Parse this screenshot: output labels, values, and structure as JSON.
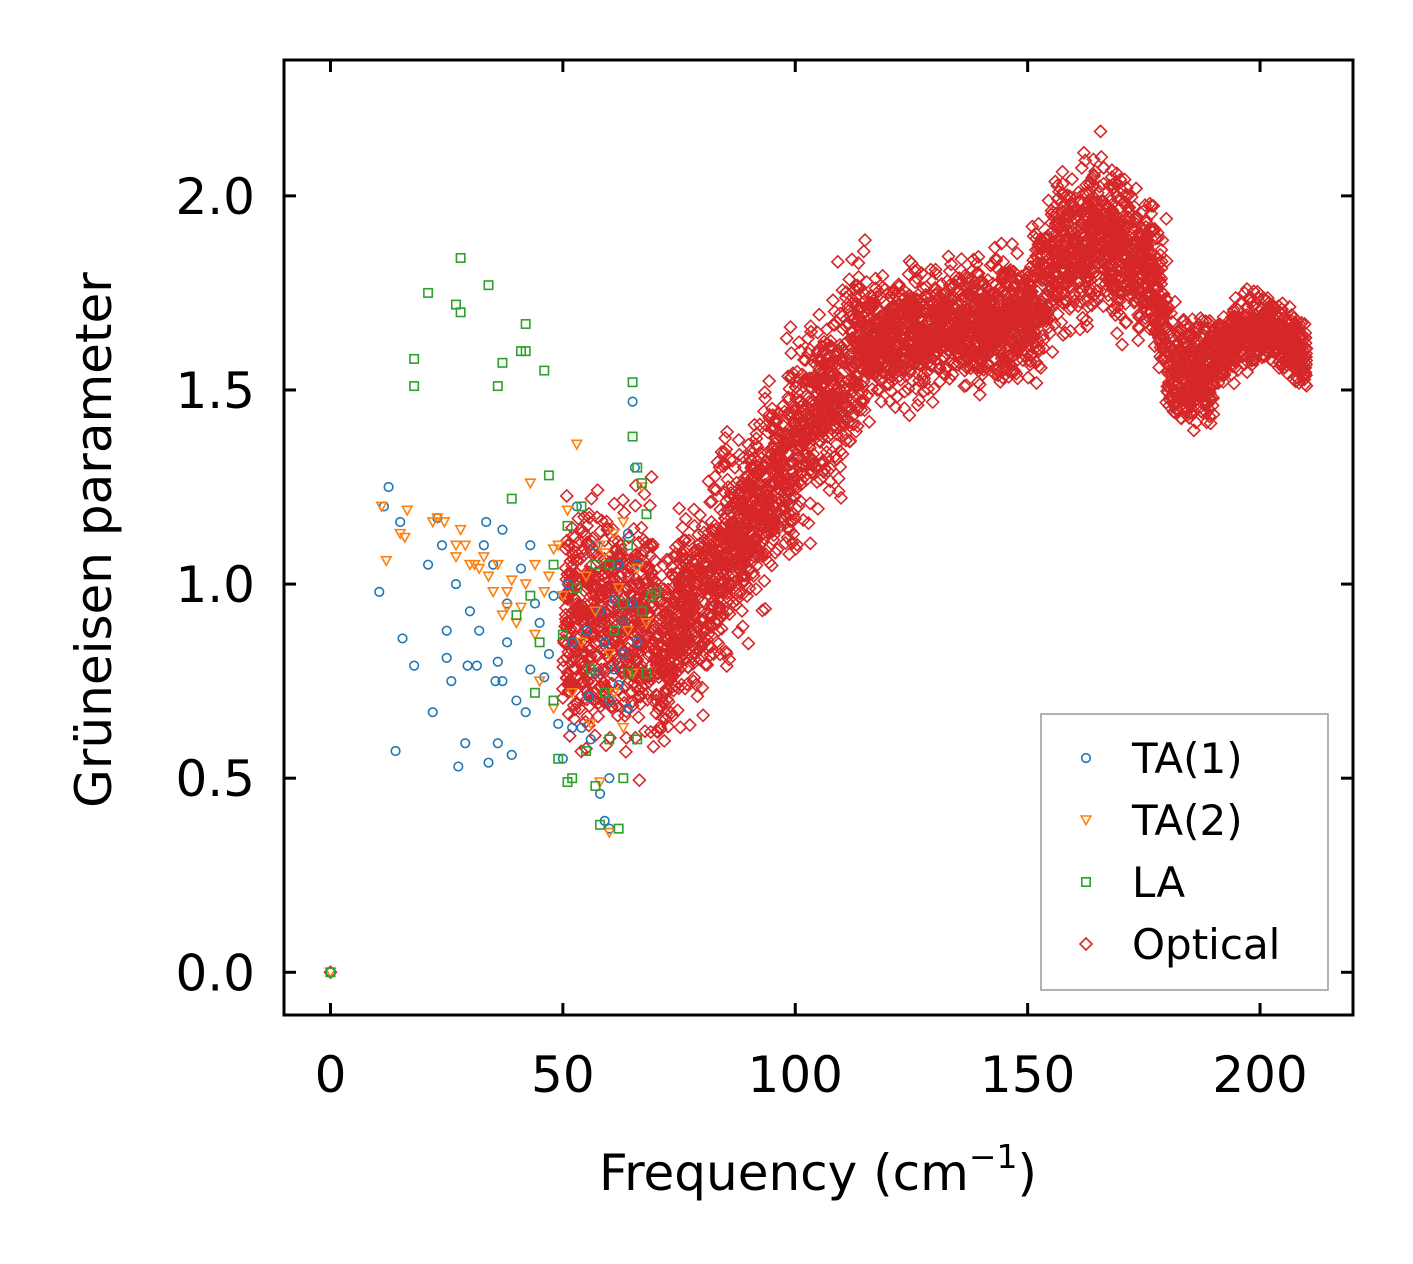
{
  "chart_data": {
    "type": "scatter",
    "title": "",
    "xlabel": "Frequency (cm",
    "xlabel_sup": "−1",
    "xlabel_close": ")",
    "ylabel": "Grüneisen parameter",
    "xlim": [
      -10,
      220
    ],
    "ylim": [
      -0.11,
      2.35
    ],
    "xticks": [
      0,
      50,
      100,
      150,
      200
    ],
    "xtick_labels": [
      "0",
      "50",
      "100",
      "150",
      "200"
    ],
    "yticks": [
      0.0,
      0.5,
      1.0,
      1.5,
      2.0
    ],
    "ytick_labels": [
      "0.0",
      "0.5",
      "1.0",
      "1.5",
      "2.0"
    ],
    "grid": false,
    "legend_position": "bottom-right",
    "series": [
      {
        "name": "TA(1)",
        "marker": "circle",
        "color": "#1f77b4",
        "points": [
          [
            0,
            0
          ],
          [
            10.5,
            0.98
          ],
          [
            11.5,
            1.2
          ],
          [
            12.5,
            1.25
          ],
          [
            14,
            0.57
          ],
          [
            15,
            1.16
          ],
          [
            15.5,
            0.86
          ],
          [
            18,
            0.79
          ],
          [
            21,
            1.05
          ],
          [
            22,
            0.67
          ],
          [
            23,
            1.17
          ],
          [
            24,
            1.1
          ],
          [
            25,
            0.81
          ],
          [
            25,
            0.88
          ],
          [
            26,
            0.75
          ],
          [
            27,
            1.0
          ],
          [
            27.5,
            0.53
          ],
          [
            29,
            0.59
          ],
          [
            29.5,
            0.79
          ],
          [
            30,
            0.93
          ],
          [
            31.5,
            0.79
          ],
          [
            32,
            0.88
          ],
          [
            33,
            1.1
          ],
          [
            33.5,
            1.16
          ],
          [
            34,
            0.54
          ],
          [
            35,
            1.05
          ],
          [
            35.5,
            0.75
          ],
          [
            36,
            0.8
          ],
          [
            36,
            0.59
          ],
          [
            37,
            1.14
          ],
          [
            37,
            0.75
          ],
          [
            38,
            0.95
          ],
          [
            38,
            0.85
          ],
          [
            39,
            0.56
          ],
          [
            40,
            0.7
          ],
          [
            41,
            1.04
          ],
          [
            42,
            0.67
          ],
          [
            43,
            0.78
          ],
          [
            43,
            1.1
          ],
          [
            44,
            0.95
          ],
          [
            45,
            0.9
          ],
          [
            46,
            0.76
          ],
          [
            47,
            0.82
          ],
          [
            48,
            0.97
          ],
          [
            49,
            0.64
          ],
          [
            50,
            0.55
          ],
          [
            51,
            1.0
          ],
          [
            52,
            0.63
          ],
          [
            52,
            0.85
          ],
          [
            53,
            1.2
          ],
          [
            54,
            0.63
          ],
          [
            55,
            0.88
          ],
          [
            55.5,
            0.71
          ],
          [
            56,
            0.6
          ],
          [
            57,
            1.1
          ],
          [
            57,
            0.77
          ],
          [
            58,
            0.93
          ],
          [
            58,
            0.46
          ],
          [
            59,
            0.39
          ],
          [
            59,
            0.85
          ],
          [
            60,
            0.5
          ],
          [
            60,
            0.7
          ],
          [
            60,
            0.37
          ],
          [
            61,
            0.96
          ],
          [
            61,
            0.78
          ],
          [
            62,
            1.05
          ],
          [
            62,
            0.74
          ],
          [
            63,
            0.9
          ],
          [
            63,
            0.82
          ],
          [
            64,
            1.13
          ],
          [
            64,
            0.68
          ],
          [
            65,
            1.47
          ],
          [
            65,
            0.95
          ],
          [
            65.5,
            1.3
          ],
          [
            66,
            1.05
          ],
          [
            66,
            0.85
          ]
        ]
      },
      {
        "name": "TA(2)",
        "marker": "triangle-down",
        "color": "#ff7f0e",
        "points": [
          [
            0,
            0
          ],
          [
            11,
            1.2
          ],
          [
            12,
            1.06
          ],
          [
            15,
            1.13
          ],
          [
            16,
            1.12
          ],
          [
            16.5,
            1.19
          ],
          [
            22,
            1.16
          ],
          [
            23,
            1.17
          ],
          [
            24.5,
            1.16
          ],
          [
            27,
            1.1
          ],
          [
            27,
            1.07
          ],
          [
            28,
            1.14
          ],
          [
            29,
            1.1
          ],
          [
            30,
            1.05
          ],
          [
            31,
            1.05
          ],
          [
            32,
            1.04
          ],
          [
            33,
            1.07
          ],
          [
            34,
            1.02
          ],
          [
            35,
            0.98
          ],
          [
            36,
            1.05
          ],
          [
            37,
            0.92
          ],
          [
            38,
            0.98
          ],
          [
            38,
            0.94
          ],
          [
            39,
            1.01
          ],
          [
            40,
            0.9
          ],
          [
            41,
            0.94
          ],
          [
            42,
            1.0
          ],
          [
            43,
            1.26
          ],
          [
            44,
            0.87
          ],
          [
            44,
            1.05
          ],
          [
            45,
            0.75
          ],
          [
            46,
            0.98
          ],
          [
            47,
            1.02
          ],
          [
            48,
            1.09
          ],
          [
            48,
            0.68
          ],
          [
            49,
            1.1
          ],
          [
            50,
            0.97
          ],
          [
            51,
            1.19
          ],
          [
            52,
            0.72
          ],
          [
            53,
            1.36
          ],
          [
            54,
            0.85
          ],
          [
            55,
            1.02
          ],
          [
            56,
            0.64
          ],
          [
            57,
            0.93
          ],
          [
            58,
            1.1
          ],
          [
            58,
            0.49
          ],
          [
            59,
            1.08
          ],
          [
            60,
            0.82
          ],
          [
            60,
            0.36
          ],
          [
            61,
            1.13
          ],
          [
            61,
            0.72
          ],
          [
            62,
            0.99
          ],
          [
            63,
            0.63
          ],
          [
            63,
            1.16
          ],
          [
            64,
            0.88
          ],
          [
            65,
            0.77
          ],
          [
            66,
            1.04
          ],
          [
            67,
            1.25
          ],
          [
            68,
            0.9
          ]
        ]
      },
      {
        "name": "LA",
        "marker": "square",
        "color": "#2ca02c",
        "points": [
          [
            0,
            0
          ],
          [
            18,
            1.58
          ],
          [
            18,
            1.51
          ],
          [
            21,
            1.75
          ],
          [
            27,
            1.72
          ],
          [
            28,
            1.84
          ],
          [
            28,
            1.7
          ],
          [
            34,
            1.77
          ],
          [
            36,
            1.51
          ],
          [
            37,
            1.57
          ],
          [
            39,
            1.22
          ],
          [
            40,
            0.92
          ],
          [
            41,
            1.6
          ],
          [
            42,
            1.67
          ],
          [
            42,
            1.6
          ],
          [
            43,
            0.97
          ],
          [
            44,
            0.72
          ],
          [
            45,
            0.85
          ],
          [
            46,
            1.55
          ],
          [
            47,
            1.28
          ],
          [
            48,
            1.05
          ],
          [
            48,
            0.7
          ],
          [
            49,
            0.55
          ],
          [
            50,
            0.87
          ],
          [
            51,
            1.15
          ],
          [
            51,
            0.49
          ],
          [
            52,
            0.5
          ],
          [
            53,
            0.99
          ],
          [
            54,
            1.2
          ],
          [
            55,
            0.57
          ],
          [
            56,
            0.78
          ],
          [
            57,
            1.05
          ],
          [
            57,
            0.48
          ],
          [
            58,
            0.38
          ],
          [
            59,
            0.72
          ],
          [
            60,
            1.05
          ],
          [
            60,
            0.6
          ],
          [
            61,
            0.88
          ],
          [
            62,
            0.37
          ],
          [
            63,
            0.95
          ],
          [
            63,
            0.5
          ],
          [
            64,
            1.1
          ],
          [
            64,
            0.77
          ],
          [
            65,
            1.52
          ],
          [
            65,
            1.38
          ],
          [
            66,
            1.3
          ],
          [
            66,
            0.6
          ],
          [
            67,
            1.26
          ],
          [
            67,
            0.93
          ],
          [
            68,
            1.18
          ],
          [
            68,
            0.77
          ],
          [
            69,
            0.97
          ],
          [
            70,
            0.98
          ]
        ]
      },
      {
        "name": "Optical",
        "marker": "diamond",
        "color": "#d62728",
        "points": []
      }
    ]
  }
}
